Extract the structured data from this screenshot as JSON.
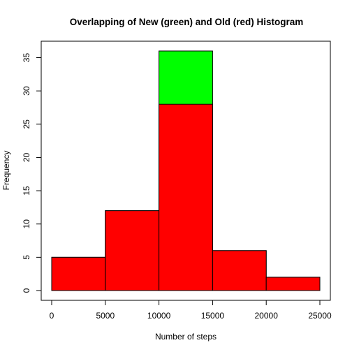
{
  "chart_data": {
    "type": "bar",
    "title": "Overlapping of New (green) and Old (red) Histogram",
    "xlabel": "Number of steps",
    "ylabel": "Frequency",
    "bin_edges": [
      0,
      5000,
      10000,
      15000,
      20000,
      25000
    ],
    "series": [
      {
        "name": "New (green)",
        "color": "#00ff00",
        "values": [
          5,
          12,
          36,
          6,
          2
        ]
      },
      {
        "name": "Old (red)",
        "color": "#ff0000",
        "values": [
          5,
          12,
          28,
          6,
          2
        ]
      }
    ],
    "xlim": [
      0,
      25000
    ],
    "ylim": [
      0,
      36
    ],
    "x_ticks": [
      0,
      5000,
      10000,
      15000,
      20000,
      25000
    ],
    "y_ticks": [
      0,
      5,
      10,
      15,
      20,
      25,
      30,
      35
    ],
    "grid": false,
    "legend": "none"
  }
}
